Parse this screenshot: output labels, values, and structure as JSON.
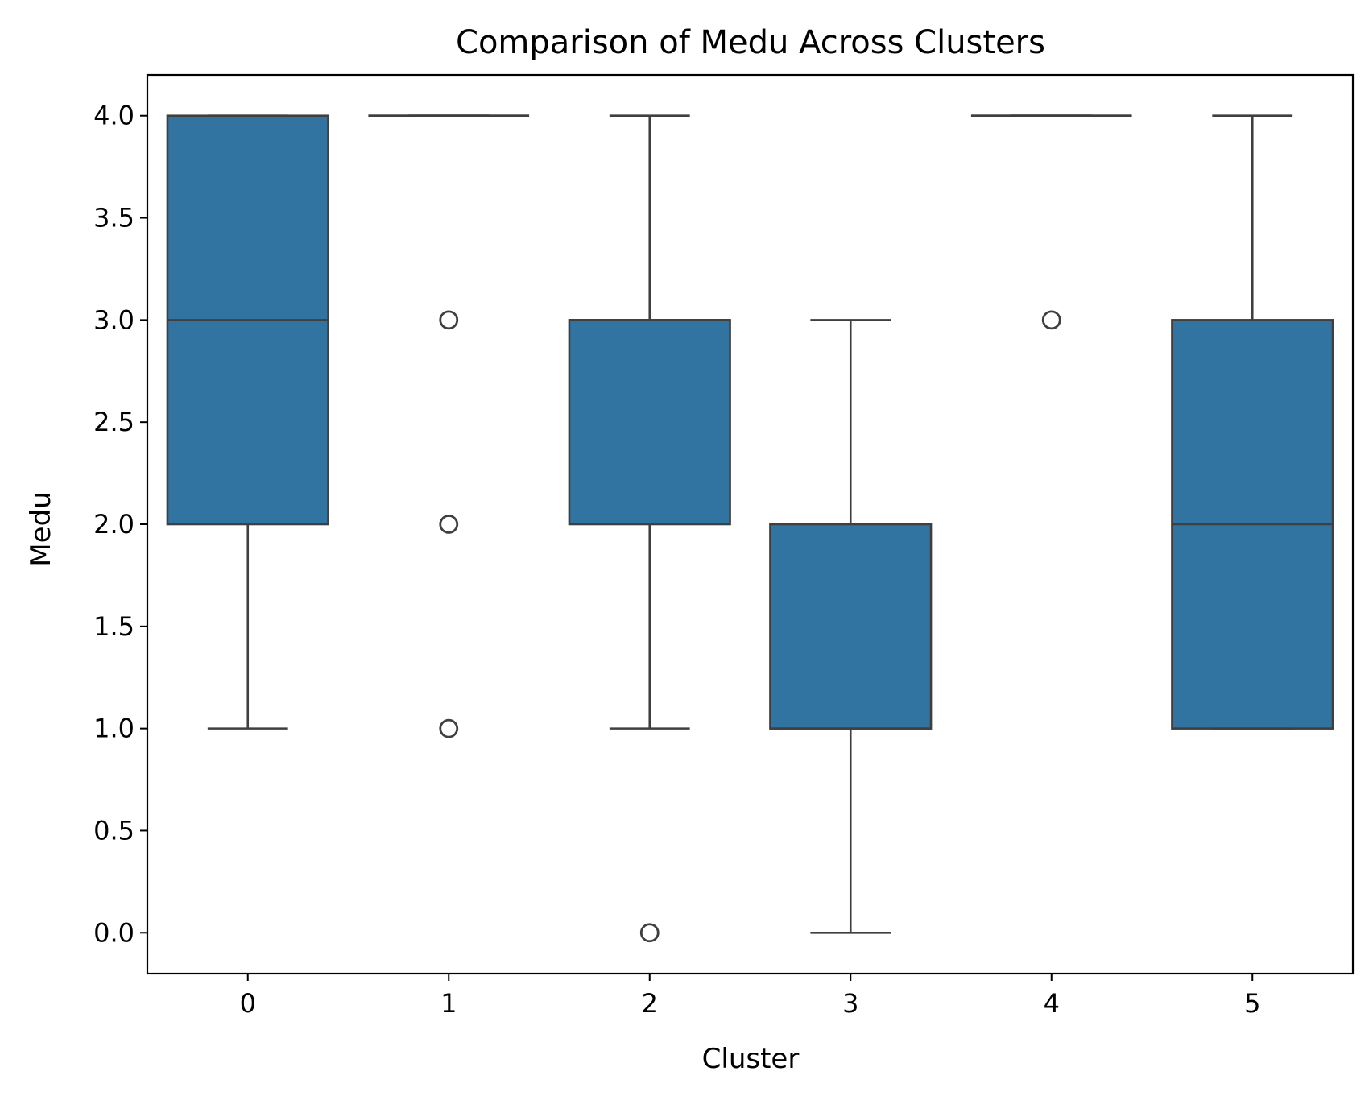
{
  "chart_data": {
    "type": "box",
    "title": "Comparison of Medu Across Clusters",
    "xlabel": "Cluster",
    "ylabel": "Medu",
    "categories": [
      "0",
      "1",
      "2",
      "3",
      "4",
      "5"
    ],
    "ylim": [
      -0.2,
      4.2
    ],
    "yticks": [
      0.0,
      0.5,
      1.0,
      1.5,
      2.0,
      2.5,
      3.0,
      3.5,
      4.0
    ],
    "ytick_labels": [
      "0.0",
      "0.5",
      "1.0",
      "1.5",
      "2.0",
      "2.5",
      "3.0",
      "3.5",
      "4.0"
    ],
    "grid": false,
    "legend": "none",
    "colors": {
      "box_fill": "#3274a1",
      "line": "#3f3f3f",
      "axes": "#000000"
    },
    "boxes": [
      {
        "category": "0",
        "whisker_low": 1,
        "q1": 2,
        "median": 3,
        "q3": 4,
        "whisker_high": 4,
        "outliers": []
      },
      {
        "category": "1",
        "whisker_low": 4,
        "q1": 4,
        "median": 4,
        "q3": 4,
        "whisker_high": 4,
        "outliers": [
          3,
          2,
          1
        ]
      },
      {
        "category": "2",
        "whisker_low": 1,
        "q1": 2,
        "median": 3,
        "q3": 3,
        "whisker_high": 4,
        "outliers": [
          0
        ]
      },
      {
        "category": "3",
        "whisker_low": 0,
        "q1": 1,
        "median": 1,
        "q3": 2,
        "whisker_high": 3,
        "outliers": []
      },
      {
        "category": "4",
        "whisker_low": 4,
        "q1": 4,
        "median": 4,
        "q3": 4,
        "whisker_high": 4,
        "outliers": [
          3
        ]
      },
      {
        "category": "5",
        "whisker_low": 1,
        "q1": 1,
        "median": 2,
        "q3": 3,
        "whisker_high": 4,
        "outliers": []
      }
    ]
  }
}
